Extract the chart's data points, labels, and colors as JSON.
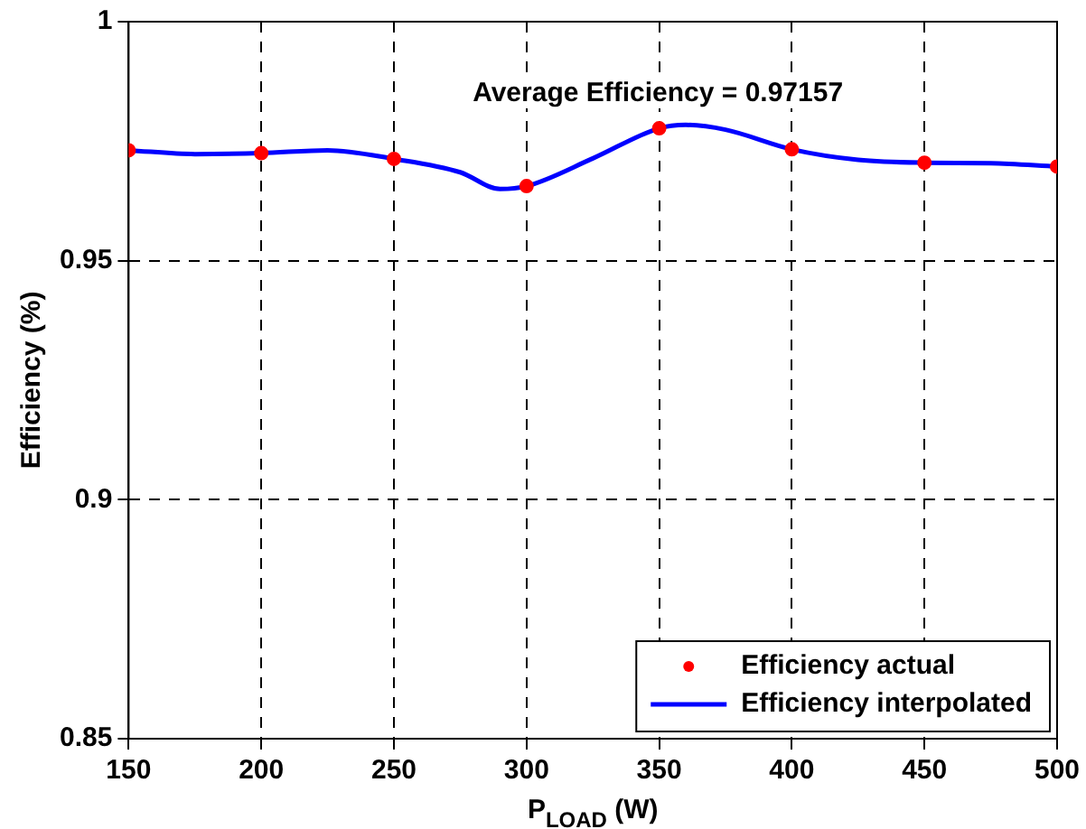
{
  "chart_data": {
    "type": "line",
    "xlabel": "P$_{LOAD}$ (W)",
    "ylabel": "Efficiency (%)",
    "annotations": [
      "Average Efficiency = 0.97157"
    ],
    "xlim": [
      150,
      500
    ],
    "xticks": [
      150,
      200,
      250,
      300,
      350,
      400,
      450,
      500
    ],
    "ylim": [
      0.85,
      1
    ],
    "yticks": [
      0.85,
      0.9,
      0.95,
      1
    ],
    "grid": true,
    "legend": "bottom right",
    "series": [
      {
        "name": "Efficiency actual",
        "type": "scatter",
        "color": "#ff0000",
        "marker": "circle",
        "x": [
          150,
          200,
          250,
          300,
          350,
          400,
          450,
          500
        ],
        "values": [
          0.9731,
          0.9725,
          0.9713,
          0.9656,
          0.9777,
          0.9733,
          0.9705,
          0.9697
        ]
      },
      {
        "name": "Efficiency interpolated",
        "type": "line",
        "color": "#0000ff",
        "marker": "none",
        "line_style": "solid",
        "x": [
          150,
          175,
          200,
          225,
          250,
          275,
          290,
          300,
          325,
          350,
          360,
          375,
          400,
          425,
          450,
          475,
          500
        ],
        "values": [
          0.9731,
          0.9723,
          0.9725,
          0.9731,
          0.9713,
          0.9685,
          0.965,
          0.9656,
          0.9714,
          0.9777,
          0.9784,
          0.9774,
          0.9733,
          0.9711,
          0.9705,
          0.9704,
          0.9697
        ]
      }
    ]
  }
}
